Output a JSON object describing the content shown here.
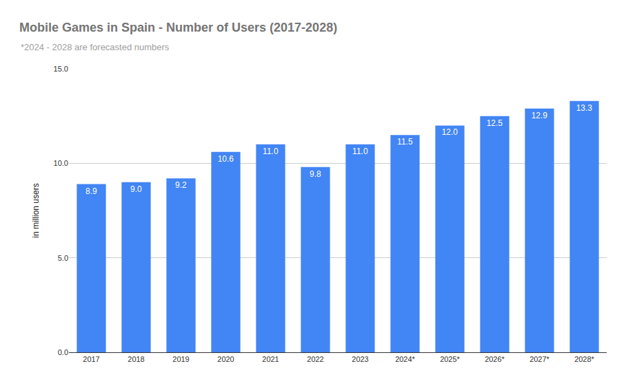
{
  "chart_data": {
    "type": "bar",
    "title": "Mobile Games in Spain - Number of Users (2017-2028)",
    "subtitle": "*2024 - 2028 are forecasted numbers",
    "y_label": "in million users",
    "categories": [
      "2017",
      "2018",
      "2019",
      "2020",
      "2021",
      "2022",
      "2023",
      "2024*",
      "2025*",
      "2026*",
      "2027*",
      "2028*"
    ],
    "values": [
      8.9,
      9.0,
      9.2,
      10.6,
      11.0,
      9.8,
      11.0,
      11.5,
      12.0,
      12.5,
      12.9,
      13.3
    ],
    "value_labels": [
      "8.9",
      "9.0",
      "9.2",
      "10.6",
      "11.0",
      "9.8",
      "11.0",
      "11.5",
      "12.0",
      "12.5",
      "12.9",
      "13.3"
    ],
    "color": "#4285f4",
    "ylim": [
      0,
      15
    ],
    "yticks": [
      {
        "value": 0,
        "label": "0.0"
      },
      {
        "value": 5,
        "label": "5.0"
      },
      {
        "value": 10,
        "label": "10.0"
      },
      {
        "value": 15,
        "label": "15.0"
      }
    ],
    "grid": true,
    "data_labels": true
  }
}
